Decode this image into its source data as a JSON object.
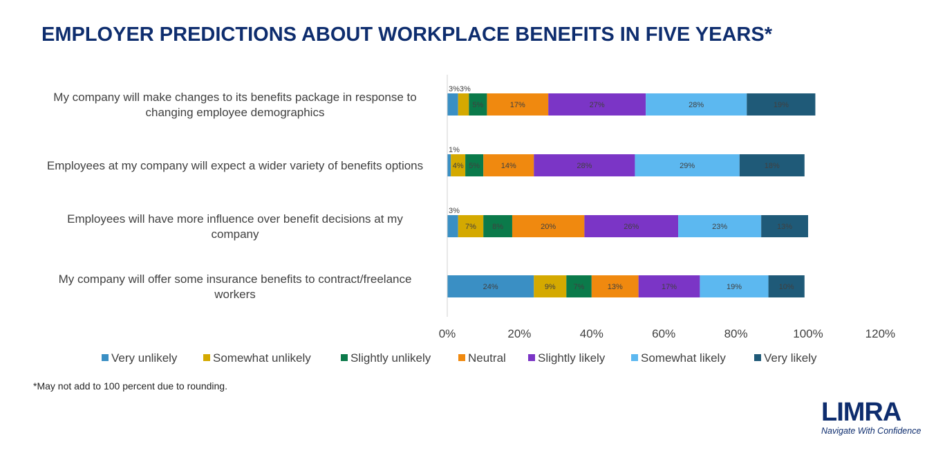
{
  "chart_data": {
    "type": "bar",
    "orientation": "horizontal",
    "stacked": true,
    "title": "EMPLOYER PREDICTIONS ABOUT WORKPLACE BENEFITS IN FIVE YEARS*",
    "categories": [
      [
        "My company will make changes to its benefits package in response to",
        "changing employee demographics"
      ],
      [
        "Employees at my company will expect a wider variety of benefits options"
      ],
      [
        "Employees will have more influence over benefit decisions at my",
        "company"
      ],
      [
        "My company will offer some insurance benefits to contract/freelance",
        "workers"
      ]
    ],
    "series": [
      {
        "name": "Very unlikely",
        "color": "#3a8fc4",
        "values": [
          3,
          1,
          3,
          24
        ],
        "label_color": "#404040"
      },
      {
        "name": "Somewhat unlikely",
        "color": "#d4a900",
        "values": [
          3,
          4,
          7,
          9
        ],
        "label_color": "#404040"
      },
      {
        "name": "Slightly unlikely",
        "color": "#0b7a4a",
        "values": [
          5,
          5,
          8,
          7
        ],
        "label_color": "#404040"
      },
      {
        "name": "Neutral",
        "color": "#f0890f",
        "values": [
          17,
          14,
          20,
          13
        ],
        "label_color": "#404040"
      },
      {
        "name": "Slightly likely",
        "color": "#7b35c6",
        "values": [
          27,
          28,
          26,
          17
        ],
        "label_color": "#404040"
      },
      {
        "name": "Somewhat likely",
        "color": "#5cb8f0",
        "values": [
          28,
          29,
          23,
          19
        ],
        "label_color": "#404040"
      },
      {
        "name": "Very likely",
        "color": "#1f5a78",
        "values": [
          19,
          18,
          13,
          10
        ],
        "label_color": "#404040"
      }
    ],
    "outside_labels": [
      [
        0,
        "3%3%"
      ],
      [
        1,
        "1%"
      ],
      [
        2,
        "3%"
      ]
    ],
    "x_ticks": [
      "0%",
      "20%",
      "40%",
      "60%",
      "80%",
      "100%",
      "120%"
    ],
    "xlim": [
      0,
      120
    ],
    "grid": false,
    "legend_position": "bottom"
  },
  "footnote": "*May not add to 100 percent due to rounding.",
  "logo": {
    "text": "LIMRA",
    "tagline": "Navigate With Confidence",
    "color": "#0e2d6e"
  }
}
